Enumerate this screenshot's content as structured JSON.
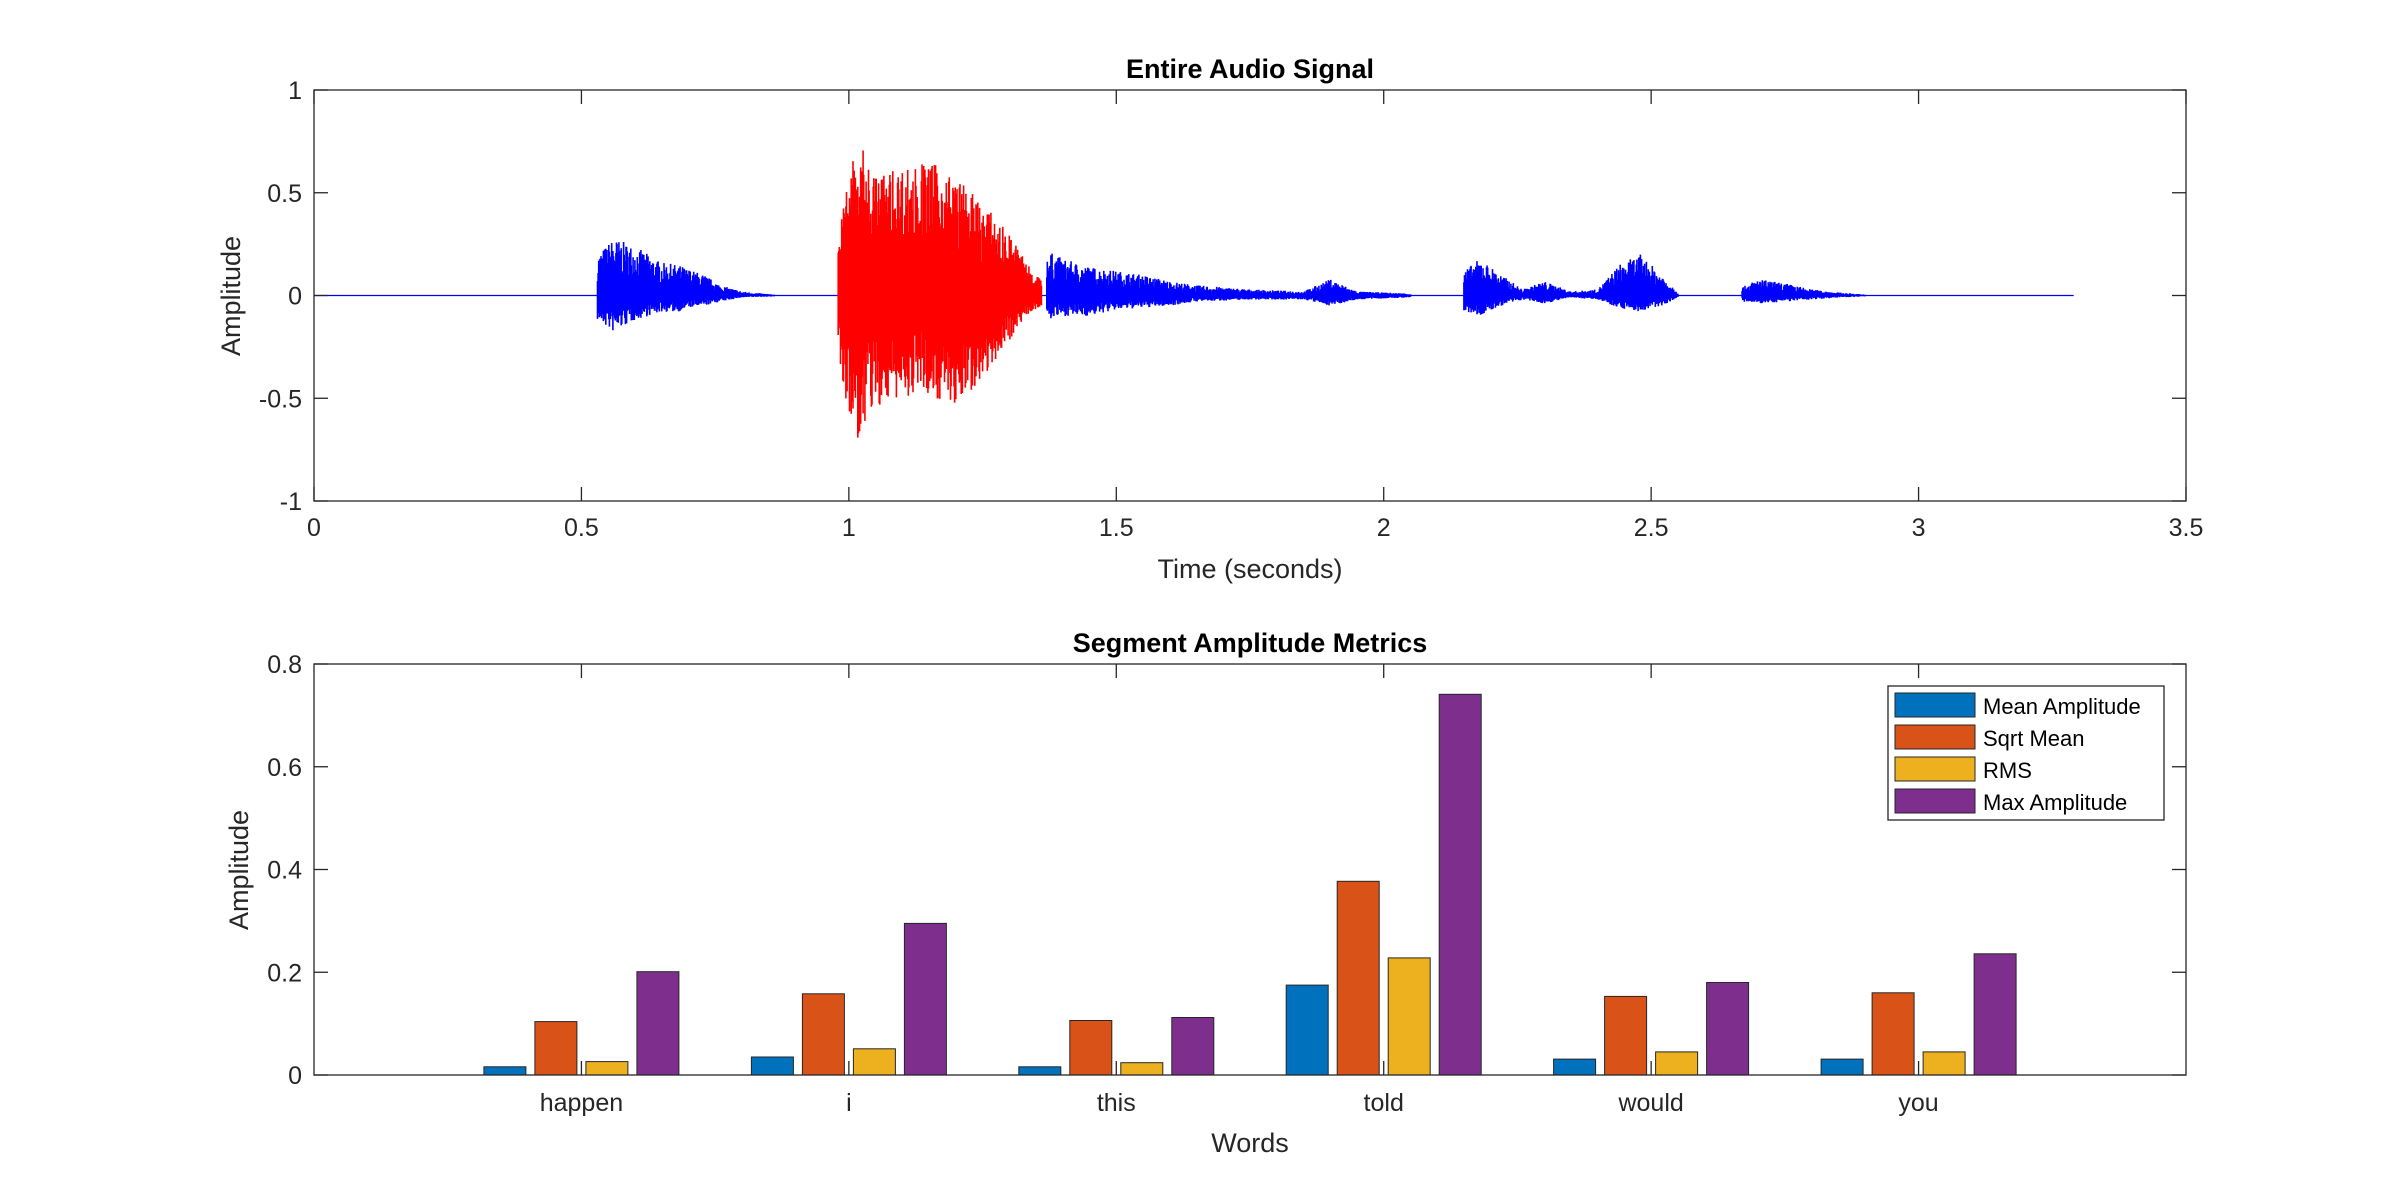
{
  "chart_data": [
    {
      "type": "line",
      "title": "Entire Audio Signal",
      "xlabel": "Time (seconds)",
      "ylabel": "Amplitude",
      "xlim": [
        0,
        3.5
      ],
      "ylim": [
        -1,
        1
      ],
      "xticks": [
        "0",
        "0.5",
        "1",
        "1.5",
        "2",
        "2.5",
        "3",
        "3.5"
      ],
      "yticks": [
        "1",
        "0.5",
        "0",
        "-0.5",
        "-1"
      ],
      "grid": false,
      "signal_end": 3.29,
      "series": [
        {
          "color": "#0000ff",
          "segments": [
            {
              "x": [
                0.53,
                0.56,
                0.6,
                0.65,
                0.68,
                0.7,
                0.73,
                0.76,
                0.8,
                0.86
              ],
              "pos": [
                0.2,
                0.28,
                0.24,
                0.16,
                0.15,
                0.13,
                0.1,
                0.05,
                0.02,
                0.005
              ],
              "neg": [
                0.12,
                0.18,
                0.12,
                0.08,
                0.08,
                0.06,
                0.05,
                0.03,
                0.01,
                0.005
              ]
            },
            {
              "x": [
                1.37,
                1.4,
                1.45,
                1.5,
                1.55,
                1.6,
                1.65,
                1.75,
                1.85,
                1.9,
                1.95,
                2.05
              ],
              "pos": [
                0.22,
                0.18,
                0.14,
                0.12,
                0.1,
                0.07,
                0.05,
                0.03,
                0.02,
                0.08,
                0.02,
                0.01
              ],
              "neg": [
                0.12,
                0.1,
                0.1,
                0.07,
                0.06,
                0.05,
                0.03,
                0.02,
                0.02,
                0.05,
                0.02,
                0.01
              ]
            },
            {
              "x": [
                2.15,
                2.18,
                2.22,
                2.26,
                2.3,
                2.35,
                2.4,
                2.44,
                2.48,
                2.52,
                2.55
              ],
              "pos": [
                0.12,
                0.18,
                0.1,
                0.03,
                0.07,
                0.02,
                0.03,
                0.15,
                0.2,
                0.1,
                0.02
              ],
              "neg": [
                0.08,
                0.1,
                0.05,
                0.02,
                0.04,
                0.01,
                0.02,
                0.06,
                0.08,
                0.05,
                0.01
              ]
            },
            {
              "x": [
                2.67,
                2.7,
                2.75,
                2.8,
                2.85,
                2.9
              ],
              "pos": [
                0.04,
                0.08,
                0.06,
                0.03,
                0.015,
                0.005
              ],
              "neg": [
                0.03,
                0.04,
                0.03,
                0.02,
                0.01,
                0.005
              ]
            }
          ]
        },
        {
          "color": "#ff0000",
          "segments": [
            {
              "x": [
                0.98,
                1.0,
                1.02,
                1.05,
                1.1,
                1.15,
                1.2,
                1.25,
                1.3,
                1.33,
                1.36
              ],
              "pos": [
                0.25,
                0.65,
                0.74,
                0.6,
                0.63,
                0.66,
                0.58,
                0.45,
                0.3,
                0.18,
                0.08
              ],
              "neg": [
                0.3,
                0.62,
                0.72,
                0.55,
                0.5,
                0.48,
                0.55,
                0.4,
                0.22,
                0.1,
                0.05
              ]
            }
          ]
        }
      ]
    },
    {
      "type": "bar",
      "title": "Segment Amplitude Metrics",
      "xlabel": "Words",
      "ylabel": "Amplitude",
      "ylim": [
        0,
        0.8
      ],
      "yticks": [
        "0",
        "0.2",
        "0.4",
        "0.6",
        "0.8"
      ],
      "categories": [
        "happen",
        "i",
        "this",
        "told",
        "would",
        "you"
      ],
      "legend_position": "top-right",
      "series": [
        {
          "name": "Mean Amplitude",
          "color": "#0072bd",
          "values": [
            0.016,
            0.035,
            0.016,
            0.175,
            0.031,
            0.031
          ]
        },
        {
          "name": "Sqrt Mean",
          "color": "#d95319",
          "values": [
            0.104,
            0.158,
            0.106,
            0.377,
            0.153,
            0.16
          ]
        },
        {
          "name": "RMS",
          "color": "#edb120",
          "values": [
            0.026,
            0.051,
            0.024,
            0.228,
            0.045,
            0.045
          ]
        },
        {
          "name": "Max Amplitude",
          "color": "#7e2f8e",
          "values": [
            0.201,
            0.295,
            0.112,
            0.741,
            0.18,
            0.236
          ]
        }
      ]
    }
  ]
}
